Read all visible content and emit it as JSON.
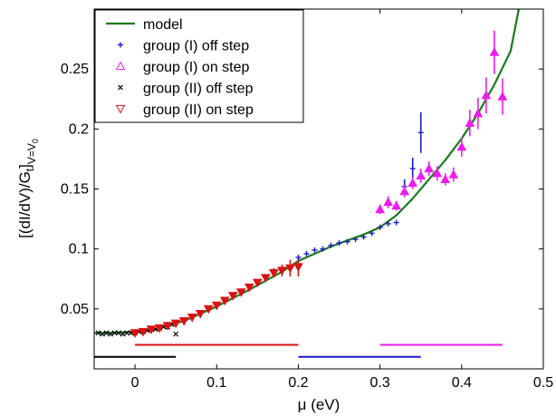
{
  "chart_data": {
    "type": "scatter",
    "xlabel": "μ (eV)",
    "ylabel": {
      "main": "[(dI/dV)/G",
      "t_sub": "t",
      "bracket": "]",
      "v_sub": "V=V",
      "zero_sub": "0"
    },
    "xlim": [
      -0.05,
      0.5
    ],
    "ylim": [
      0,
      0.3
    ],
    "xticks": [
      0,
      0.1,
      0.2,
      0.3,
      0.4,
      0.5
    ],
    "xtick_labels": [
      "0",
      "0.1",
      "0.2",
      "0.3",
      "0.4",
      "0.5"
    ],
    "yticks": [
      0.05,
      0.1,
      0.15,
      0.2,
      0.25
    ],
    "ytick_labels": [
      "0.05",
      "0.1",
      "0.15",
      "0.2",
      "0.25"
    ],
    "grid": false,
    "legend_position": "top-left",
    "legend": [
      {
        "label": "model",
        "key": "model"
      },
      {
        "label": "group (I) off step",
        "key": "g1off"
      },
      {
        "label": "group (I) on step",
        "key": "g1on"
      },
      {
        "label": "group (II) off step",
        "key": "g2off"
      },
      {
        "label": "group (II) on step",
        "key": "g2on"
      }
    ],
    "colors": {
      "model": "#1a7a1a",
      "g1off": "#1a1acc",
      "g1on": "#ee1cee",
      "g2off": "#000000",
      "g2on": "#dd1111"
    },
    "model": {
      "x": [
        -0.05,
        -0.03,
        0.0,
        0.03,
        0.06,
        0.1,
        0.14,
        0.18,
        0.2,
        0.24,
        0.28,
        0.3,
        0.32,
        0.34,
        0.36,
        0.38,
        0.4,
        0.42,
        0.44,
        0.46,
        0.47
      ],
      "y": [
        0.03,
        0.03,
        0.031,
        0.034,
        0.04,
        0.052,
        0.066,
        0.081,
        0.09,
        0.102,
        0.112,
        0.118,
        0.128,
        0.142,
        0.158,
        0.174,
        0.192,
        0.213,
        0.237,
        0.265,
        0.3
      ]
    },
    "series": [
      {
        "key": "g2off",
        "marker": "x",
        "x": [
          -0.045,
          -0.04,
          -0.035,
          -0.03,
          -0.025,
          -0.02,
          -0.015,
          -0.01,
          -0.005,
          0.0,
          0.005,
          0.01,
          0.015,
          0.02,
          0.025,
          0.03,
          0.035,
          0.04,
          0.045,
          0.05
        ],
        "y": [
          0.03,
          0.029,
          0.03,
          0.029,
          0.03,
          0.03,
          0.029,
          0.03,
          0.03,
          0.03,
          0.031,
          0.031,
          0.032,
          0.033,
          0.033,
          0.034,
          0.035,
          0.035,
          0.037,
          0.029
        ],
        "err": null
      },
      {
        "key": "g2on",
        "marker": "tri-down",
        "x": [
          0.0,
          0.01,
          0.02,
          0.03,
          0.04,
          0.05,
          0.06,
          0.07,
          0.08,
          0.09,
          0.1,
          0.11,
          0.12,
          0.13,
          0.14,
          0.15,
          0.16,
          0.17,
          0.18,
          0.19,
          0.2
        ],
        "y": [
          0.03,
          0.031,
          0.033,
          0.034,
          0.036,
          0.038,
          0.04,
          0.043,
          0.046,
          0.05,
          0.053,
          0.057,
          0.061,
          0.064,
          0.068,
          0.072,
          0.076,
          0.08,
          0.082,
          0.084,
          0.085
        ],
        "err": [
          0,
          0,
          0,
          0,
          0,
          0,
          0,
          0,
          0,
          0,
          0,
          0,
          0,
          0,
          0,
          0,
          0,
          0.004,
          0.005,
          0.007,
          0.008
        ]
      },
      {
        "key": "g1off",
        "marker": "plus",
        "x": [
          0.2,
          0.21,
          0.22,
          0.23,
          0.24,
          0.25,
          0.26,
          0.27,
          0.28,
          0.29,
          0.3,
          0.31,
          0.32,
          0.33,
          0.34,
          0.35
        ],
        "y": [
          0.093,
          0.096,
          0.099,
          0.1,
          0.103,
          0.105,
          0.106,
          0.108,
          0.11,
          0.113,
          0.118,
          0.121,
          0.122,
          0.152,
          0.167,
          0.197
        ],
        "err": [
          0,
          0,
          0,
          0,
          0,
          0,
          0,
          0,
          0,
          0,
          0,
          0,
          0,
          0.006,
          0.009,
          0.017
        ]
      },
      {
        "key": "g1on",
        "marker": "tri-up",
        "x": [
          0.3,
          0.31,
          0.32,
          0.33,
          0.34,
          0.35,
          0.36,
          0.37,
          0.38,
          0.39,
          0.4,
          0.41,
          0.42,
          0.43,
          0.44,
          0.45
        ],
        "y": [
          0.133,
          0.139,
          0.136,
          0.148,
          0.155,
          0.161,
          0.167,
          0.163,
          0.158,
          0.162,
          0.185,
          0.205,
          0.213,
          0.228,
          0.264,
          0.227
        ],
        "err": [
          0.004,
          0.005,
          0.004,
          0.005,
          0.005,
          0.006,
          0.006,
          0.006,
          0.005,
          0.006,
          0.008,
          0.011,
          0.013,
          0.015,
          0.018,
          0.015
        ]
      }
    ],
    "range_bars": [
      {
        "key": "g2off",
        "x": [
          -0.05,
          0.05
        ],
        "y": 0.01
      },
      {
        "key": "g2on",
        "x": [
          0.0,
          0.2
        ],
        "y": 0.02
      },
      {
        "key": "g1off",
        "x": [
          0.2,
          0.35
        ],
        "y": 0.01
      },
      {
        "key": "g1on",
        "x": [
          0.3,
          0.45
        ],
        "y": 0.02
      }
    ]
  }
}
